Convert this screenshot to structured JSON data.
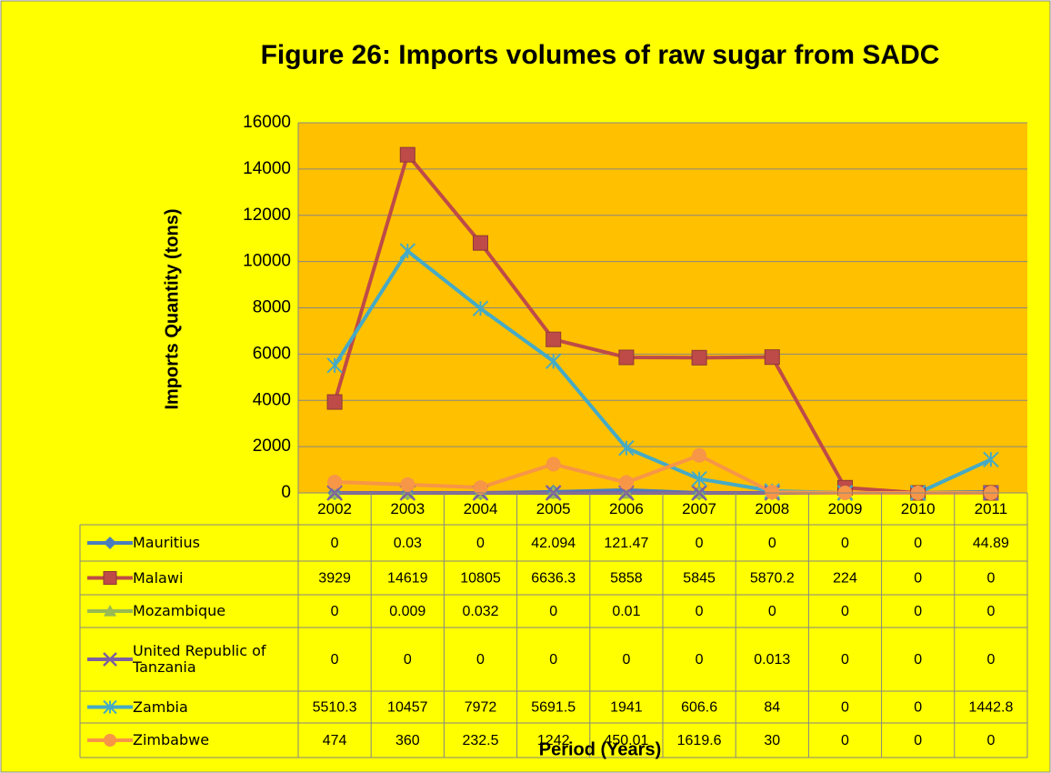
{
  "chart_data": {
    "type": "line",
    "title": "Figure 26: Imports volumes of raw sugar from SADC",
    "xlabel": "Period (Years)",
    "ylabel": "Imports Quantity (tons)",
    "categories": [
      "2002",
      "2003",
      "2004",
      "2005",
      "2006",
      "2007",
      "2008",
      "2009",
      "2010",
      "2011"
    ],
    "series": [
      {
        "name": "Mauritius",
        "color": "#4a7ebb",
        "marker": "diamond",
        "values": [
          0,
          0.03,
          0,
          42.094,
          121.47,
          0,
          0,
          0,
          0,
          44.89
        ]
      },
      {
        "name": "Malawi",
        "color": "#be4b48",
        "marker": "square",
        "values": [
          3929,
          14619,
          10805,
          6636.3,
          5858,
          5845,
          5870.2,
          224,
          0,
          0
        ]
      },
      {
        "name": "Mozambique",
        "color": "#98b954",
        "marker": "triangle",
        "values": [
          0,
          0.009,
          0.032,
          0,
          0.01,
          0,
          0,
          0,
          0,
          0
        ]
      },
      {
        "name": "United Republic of Tanzania",
        "color": "#7d60a0",
        "marker": "x",
        "values": [
          0,
          0,
          0,
          0,
          0,
          0,
          0.013,
          0,
          0,
          0
        ]
      },
      {
        "name": "Zambia",
        "color": "#46aac5",
        "marker": "star",
        "values": [
          5510.3,
          10457,
          7972,
          5691.5,
          1941,
          606.6,
          84,
          0,
          0,
          1442.8
        ]
      },
      {
        "name": "Zimbabwe",
        "color": "#f79646",
        "marker": "circle",
        "values": [
          474,
          360,
          232.5,
          1242,
          450.01,
          1619.6,
          30,
          0,
          0,
          0
        ]
      }
    ],
    "ylim": [
      0,
      16000
    ],
    "yticks": [
      0,
      2000,
      4000,
      6000,
      8000,
      10000,
      12000,
      14000,
      16000
    ],
    "grid": true,
    "data_table": true
  }
}
